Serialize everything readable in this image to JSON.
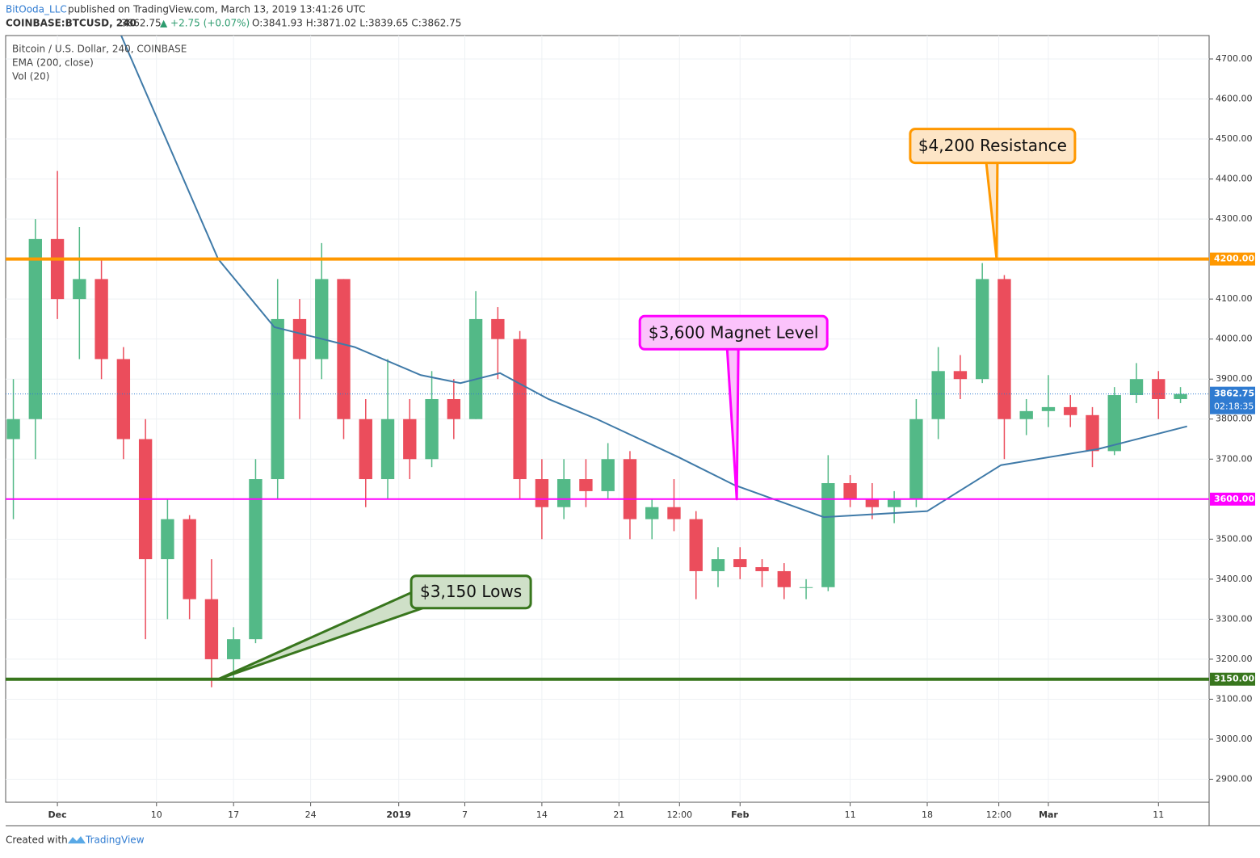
{
  "header": {
    "author": "BitOoda_LLC",
    "published": "published on TradingView.com, March 13, 2019 13:41:26 UTC",
    "symbol": "COINBASE:BTCUSD, 240",
    "price": "3862.75",
    "change": "▲ +2.75 (+0.07%)",
    "ohlc": "O:3841.93 H:3871.02 L:3839.65 C:3862.75"
  },
  "footer": {
    "created": "Created with",
    "brand": "TradingView"
  },
  "chart_data": {
    "type": "candlestick",
    "legend": [
      "Bitcoin / U.S. Dollar, 240, COINBASE",
      "EMA (200, close)",
      "Vol (20)"
    ],
    "up_color": "#53b987",
    "down_color": "#eb4d5c",
    "xlim": [
      -4.7,
      104.6
    ],
    "ylim": [
      2842.5,
      4758.5
    ],
    "xticks": [
      {
        "value": 0,
        "label": "Dec"
      },
      {
        "value": 9,
        "label": "10"
      },
      {
        "value": 16,
        "label": "17"
      },
      {
        "value": 23,
        "label": "24"
      },
      {
        "value": 31,
        "label": "2019"
      },
      {
        "value": 37,
        "label": "7"
      },
      {
        "value": 44,
        "label": "14"
      },
      {
        "value": 51,
        "label": "21"
      },
      {
        "value": 56.5,
        "label": "12:00"
      },
      {
        "value": 62,
        "label": "Feb"
      },
      {
        "value": 72,
        "label": "11"
      },
      {
        "value": 79,
        "label": "18"
      },
      {
        "value": 85.5,
        "label": "12:00"
      },
      {
        "value": 90,
        "label": "Mar"
      },
      {
        "value": 100,
        "label": "11"
      }
    ],
    "yticks": [
      {
        "value": 2900,
        "label": "2900.00"
      },
      {
        "value": 3000,
        "label": "3000.00"
      },
      {
        "value": 3100,
        "label": "3100.00"
      },
      {
        "value": 3200,
        "label": "3200.00"
      },
      {
        "value": 3300,
        "label": "3300.00"
      },
      {
        "value": 3400,
        "label": "3400.00"
      },
      {
        "value": 3500,
        "label": "3500.00"
      },
      {
        "value": 3700,
        "label": "3700.00"
      },
      {
        "value": 3800,
        "label": "3800.00"
      },
      {
        "value": 3900,
        "label": "3900.00"
      },
      {
        "value": 4000,
        "label": "4000.00"
      },
      {
        "value": 4100,
        "label": "4100.00"
      },
      {
        "value": 4300,
        "label": "4300.00"
      },
      {
        "value": 4400,
        "label": "4400.00"
      },
      {
        "value": 4500,
        "label": "4500.00"
      },
      {
        "value": 4600,
        "label": "4600.00"
      },
      {
        "value": 4700,
        "label": "4700.00"
      }
    ],
    "x": [
      -4,
      -2,
      0,
      2,
      4,
      6,
      8,
      10,
      12,
      14,
      16,
      18,
      20,
      22,
      24,
      26,
      28,
      30,
      32,
      34,
      36,
      38,
      40,
      42,
      44,
      46,
      48,
      50,
      52,
      54,
      56,
      58,
      60,
      62,
      64,
      66,
      68,
      70,
      72,
      74,
      76,
      78,
      80,
      82,
      84,
      86,
      88,
      90,
      92,
      94,
      96,
      98,
      100,
      102
    ],
    "open": [
      3750,
      3800,
      4250,
      4100,
      4150,
      3950,
      3750,
      3450,
      3550,
      3350,
      3200,
      3250,
      3650,
      4050,
      3950,
      4150,
      3800,
      3650,
      3800,
      3700,
      3850,
      3800,
      4050,
      4000,
      3650,
      3580,
      3650,
      3620,
      3700,
      3550,
      3580,
      3550,
      3420,
      3450,
      3430,
      3420,
      3380,
      3380,
      3640,
      3600,
      3580,
      3600,
      3800,
      3920,
      3900,
      4150,
      3800,
      3820,
      3830,
      3810,
      3720,
      3860,
      3900,
      3850
    ],
    "high": [
      3900,
      4300,
      4420,
      4280,
      4200,
      3980,
      3800,
      3600,
      3560,
      3450,
      3280,
      3700,
      4150,
      4100,
      4240,
      4150,
      3850,
      3950,
      3850,
      3920,
      3900,
      4120,
      4080,
      4020,
      3700,
      3700,
      3700,
      3740,
      3720,
      3600,
      3650,
      3570,
      3480,
      3480,
      3450,
      3440,
      3400,
      3710,
      3660,
      3640,
      3620,
      3850,
      3980,
      3960,
      4190,
      4160,
      3850,
      3910,
      3860,
      3830,
      3880,
      3940,
      3920,
      3880
    ],
    "low": [
      3550,
      3700,
      4050,
      3950,
      3900,
      3700,
      3250,
      3300,
      3300,
      3130,
      3150,
      3240,
      3600,
      3800,
      3900,
      3750,
      3580,
      3600,
      3650,
      3680,
      3750,
      3800,
      3900,
      3600,
      3500,
      3550,
      3580,
      3600,
      3500,
      3500,
      3520,
      3350,
      3380,
      3400,
      3380,
      3350,
      3350,
      3370,
      3580,
      3550,
      3540,
      3580,
      3750,
      3850,
      3890,
      3700,
      3760,
      3780,
      3780,
      3680,
      3710,
      3840,
      3800,
      3840
    ],
    "close": [
      3800,
      4250,
      4100,
      4150,
      3950,
      3750,
      3450,
      3550,
      3350,
      3200,
      3250,
      3650,
      4050,
      3950,
      4150,
      3800,
      3650,
      3800,
      3700,
      3850,
      3800,
      4050,
      4000,
      3650,
      3580,
      3650,
      3620,
      3700,
      3550,
      3580,
      3550,
      3420,
      3450,
      3430,
      3420,
      3380,
      3380,
      3640,
      3600,
      3580,
      3600,
      3800,
      3920,
      3900,
      4150,
      3800,
      3820,
      3830,
      3810,
      3720,
      3860,
      3900,
      3850,
      3862.75
    ],
    "ema": {
      "color": "#3f7aa8",
      "x": [
        5.8,
        14.6,
        19.7,
        27,
        33,
        36.6,
        40.2,
        44.6,
        49,
        56.4,
        61.5,
        69.6,
        79,
        85.7,
        94.5,
        102.6
      ],
      "values": [
        4758,
        4200,
        4030,
        3980,
        3910,
        3890,
        3915,
        3850,
        3800,
        3705,
        3635,
        3555,
        3570,
        3685,
        3725,
        3782
      ]
    },
    "last": {
      "value": 3862.75,
      "label": "3862.75",
      "timer": "02:18:35",
      "color": "#2f7bd1"
    },
    "levels": [
      {
        "value": 4200,
        "label": "4200.00",
        "color": "#ff9800"
      },
      {
        "value": 3600,
        "label": "3600.00",
        "color": "#ff00ff"
      },
      {
        "value": 3150,
        "label": "3150.00",
        "color": "#38761d"
      }
    ],
    "annotations": [
      {
        "text": "$4,200 Resistance",
        "x": 85.3,
        "y": 4200,
        "color": "#ff9800",
        "fill": "#fde5c6"
      },
      {
        "text": "$3,600 Magnet Level",
        "x": 61.7,
        "y": 3600,
        "color": "#ff00ff",
        "fill": "#fbc3fb"
      },
      {
        "text": "$3,150 Lows",
        "x": 14.6,
        "y": 3150,
        "color": "#38761d",
        "fill": "#cfe0c8"
      }
    ]
  }
}
